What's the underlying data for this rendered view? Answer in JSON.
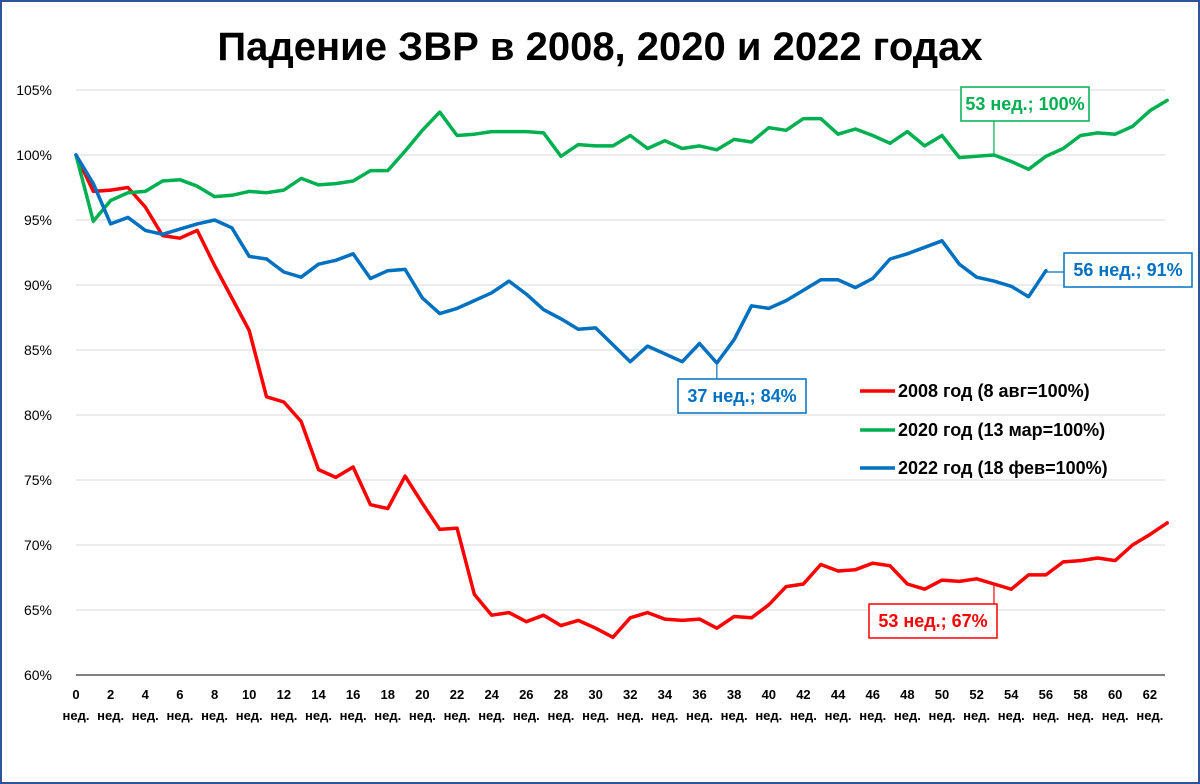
{
  "chart_data": {
    "type": "line",
    "title": "Падение ЗВР в 2008, 2020 и 2022 годах",
    "xlabel": "",
    "ylabel": "",
    "ylim": [
      60,
      105
    ],
    "grid": true,
    "legend_position": "center-right",
    "y_tick_labels": [
      "60%",
      "65%",
      "70%",
      "75%",
      "80%",
      "85%",
      "90%",
      "95%",
      "100%",
      "105%"
    ],
    "y_tick_values": [
      60,
      65,
      70,
      75,
      80,
      85,
      90,
      95,
      100,
      105
    ],
    "x_tick_numbers": [
      "0",
      "2",
      "4",
      "6",
      "8",
      "10",
      "12",
      "14",
      "16",
      "18",
      "20",
      "22",
      "24",
      "26",
      "28",
      "30",
      "32",
      "34",
      "36",
      "38",
      "40",
      "42",
      "44",
      "46",
      "48",
      "50",
      "52",
      "54",
      "56",
      "58",
      "60",
      "62"
    ],
    "x_tick_unit": "нед.",
    "series": [
      {
        "name": "2008 год (8 авг=100%)",
        "color": "#ff0000",
        "x": [
          0,
          1,
          2,
          3,
          4,
          5,
          6,
          7,
          8,
          9,
          10,
          11,
          12,
          13,
          14,
          15,
          16,
          17,
          18,
          19,
          20,
          21,
          22,
          23,
          24,
          25,
          26,
          27,
          28,
          29,
          30,
          31,
          32,
          33,
          34,
          35,
          36,
          37,
          38,
          39,
          40,
          41,
          42,
          43,
          44,
          45,
          46,
          47,
          48,
          49,
          50,
          51,
          52,
          53,
          54,
          55,
          56,
          57,
          58,
          59,
          60,
          61,
          62,
          63
        ],
        "values": [
          100,
          97.2,
          97.3,
          97.5,
          96.0,
          93.8,
          93.6,
          94.2,
          91.5,
          89.0,
          86.5,
          81.4,
          81.0,
          79.5,
          75.8,
          75.2,
          76.0,
          73.1,
          72.8,
          75.3,
          73.2,
          71.2,
          71.3,
          66.2,
          64.6,
          64.8,
          64.1,
          64.6,
          63.8,
          64.2,
          63.6,
          62.9,
          64.4,
          64.8,
          64.3,
          64.2,
          64.3,
          63.6,
          64.5,
          64.4,
          65.4,
          66.8,
          67.0,
          68.5,
          68.0,
          68.1,
          68.6,
          68.4,
          67.0,
          66.6,
          67.3,
          67.2,
          67.4,
          67.0,
          66.6,
          67.7,
          67.7,
          68.7,
          68.8,
          69.0,
          68.8,
          70.0,
          70.8,
          71.7
        ]
      },
      {
        "name": "2020 год (13 мар=100%)",
        "color": "#00b050",
        "x": [
          0,
          1,
          2,
          3,
          4,
          5,
          6,
          7,
          8,
          9,
          10,
          11,
          12,
          13,
          14,
          15,
          16,
          17,
          18,
          19,
          20,
          21,
          22,
          23,
          24,
          25,
          26,
          27,
          28,
          29,
          30,
          31,
          32,
          33,
          34,
          35,
          36,
          37,
          38,
          39,
          40,
          41,
          42,
          43,
          44,
          45,
          46,
          47,
          48,
          49,
          50,
          51,
          52,
          53,
          54,
          55,
          56,
          57,
          58,
          59,
          60,
          61,
          62,
          63
        ],
        "values": [
          100,
          94.9,
          96.5,
          97.1,
          97.2,
          98.0,
          98.1,
          97.6,
          96.8,
          96.9,
          97.2,
          97.1,
          97.3,
          98.2,
          97.7,
          97.8,
          98.0,
          98.8,
          98.8,
          100.3,
          101.9,
          103.3,
          101.5,
          101.6,
          101.8,
          101.8,
          101.8,
          101.7,
          99.9,
          100.8,
          100.7,
          100.7,
          101.5,
          100.5,
          101.1,
          100.5,
          100.7,
          100.4,
          101.2,
          101.0,
          102.1,
          101.9,
          102.8,
          102.8,
          101.6,
          102.0,
          101.5,
          100.9,
          101.8,
          100.7,
          101.5,
          99.8,
          99.9,
          100.0,
          99.5,
          98.9,
          99.9,
          100.5,
          101.5,
          101.7,
          101.6,
          102.2,
          103.4,
          104.2
        ]
      },
      {
        "name": "2022 год (18 фев=100%)",
        "color": "#0070c0",
        "x": [
          0,
          1,
          2,
          3,
          4,
          5,
          6,
          7,
          8,
          9,
          10,
          11,
          12,
          13,
          14,
          15,
          16,
          17,
          18,
          19,
          20,
          21,
          22,
          23,
          24,
          25,
          26,
          27,
          28,
          29,
          30,
          31,
          32,
          33,
          34,
          35,
          36,
          37,
          38,
          39,
          40,
          41,
          42,
          43,
          44,
          45,
          46,
          47,
          48,
          49,
          50,
          51,
          52,
          53,
          54,
          55,
          56
        ],
        "values": [
          100,
          97.8,
          94.7,
          95.2,
          94.2,
          93.9,
          94.3,
          94.7,
          95.0,
          94.4,
          92.2,
          92.0,
          91.0,
          90.6,
          91.6,
          91.9,
          92.4,
          90.5,
          91.1,
          91.2,
          89.0,
          87.8,
          88.2,
          88.8,
          89.4,
          90.3,
          89.3,
          88.1,
          87.4,
          86.6,
          86.7,
          85.4,
          84.1,
          85.3,
          84.7,
          84.1,
          85.5,
          84.0,
          85.8,
          88.4,
          88.2,
          88.8,
          89.6,
          90.4,
          90.4,
          89.8,
          90.5,
          92.0,
          92.4,
          92.9,
          93.4,
          91.6,
          90.6,
          90.3,
          89.9,
          89.1,
          91.1
        ]
      }
    ],
    "annotations": [
      {
        "label": "53 нед.; 100%",
        "series": "2020 год (13 мар=100%)",
        "x": 53,
        "y": 100,
        "color": "#00b050"
      },
      {
        "label": "56 нед.; 91%",
        "series": "2022 год (18 фев=100%)",
        "x": 56,
        "y": 91,
        "color": "#0070c0"
      },
      {
        "label": "37 нед.; 84%",
        "series": "2022 год (18 фев=100%)",
        "x": 37,
        "y": 84,
        "color": "#0070c0"
      },
      {
        "label": "53 нед.; 67%",
        "series": "2008 год (8 авг=100%)",
        "x": 53,
        "y": 67,
        "color": "#ff0000"
      }
    ]
  }
}
